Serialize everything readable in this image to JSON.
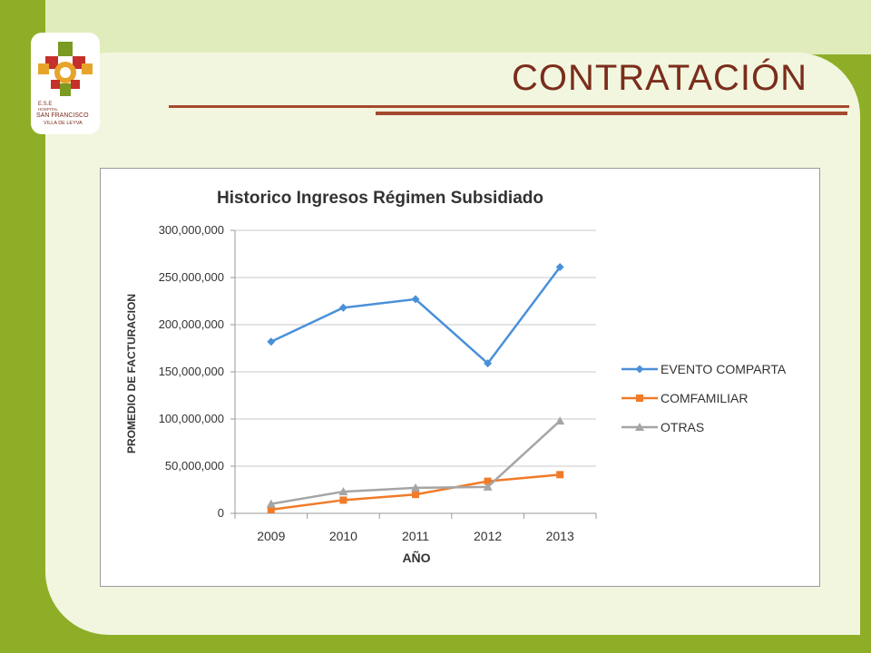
{
  "slide": {
    "title": "CONTRATACIÓN",
    "logo_text": {
      "line1": "E.S.E",
      "line2": "HOSPITAL",
      "line3": "SAN FRANCISCO",
      "line4": "VILLA DE LEYVA"
    }
  },
  "colors": {
    "background": "#8fae28",
    "panel": "#f2f6df",
    "title": "#7b2d1c",
    "rule": "#a5492f"
  },
  "chart_data": {
    "type": "line",
    "title": "Historico Ingresos Régimen Subsidiado",
    "xlabel": "AÑO",
    "ylabel": "PROMEDIO DE FACTURACION",
    "categories": [
      "2009",
      "2010",
      "2011",
      "2012",
      "2013"
    ],
    "ylim": [
      0,
      300000000
    ],
    "yticks": [
      0,
      50000000,
      100000000,
      150000000,
      200000000,
      250000000,
      300000000
    ],
    "ytick_labels": [
      "0",
      "50,000,000",
      "100,000,000",
      "150,000,000",
      "200,000,000",
      "250,000,000",
      "300,000,000"
    ],
    "grid": true,
    "legend_position": "right",
    "series": [
      {
        "name": "EVENTO COMPARTA",
        "color": "#4a90d9",
        "marker": "diamond",
        "values": [
          182000000,
          218000000,
          227000000,
          159000000,
          261000000
        ]
      },
      {
        "name": "COMFAMILIAR",
        "color": "#f07b28",
        "marker": "square",
        "values": [
          4000000,
          14000000,
          20000000,
          34000000,
          41000000
        ]
      },
      {
        "name": "OTRAS",
        "color": "#a5a5a5",
        "marker": "triangle",
        "values": [
          10000000,
          23000000,
          27000000,
          28000000,
          98000000
        ]
      }
    ]
  }
}
